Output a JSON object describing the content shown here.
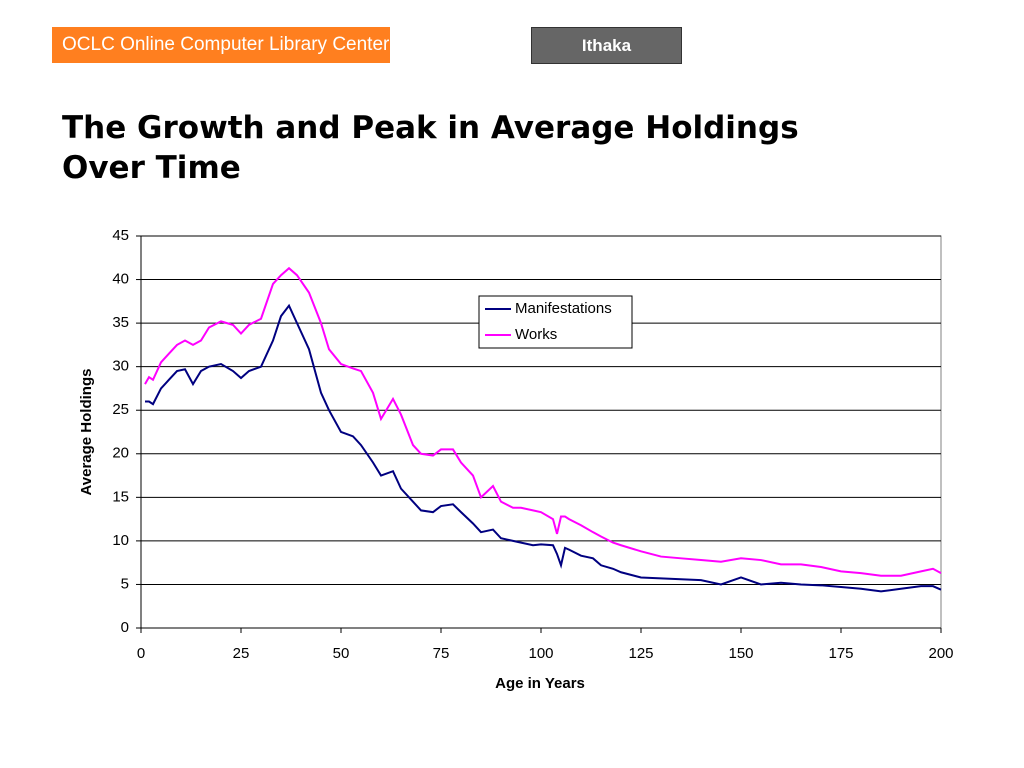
{
  "header": {
    "logo": "OCLC Online Computer Library Center",
    "badge": "Ithaka"
  },
  "chart_data": {
    "type": "line",
    "title": "The Growth and Peak in Average Holdings Over Time",
    "x_label": "Age in Years",
    "y_label": "Average Holdings",
    "x": [
      1,
      2,
      3,
      5,
      7,
      9,
      11,
      13,
      15,
      17,
      20,
      23,
      25,
      27,
      30,
      33,
      35,
      37,
      39,
      42,
      45,
      47,
      50,
      53,
      55,
      58,
      60,
      63,
      65,
      68,
      70,
      73,
      75,
      78,
      80,
      83,
      85,
      88,
      90,
      93,
      95,
      98,
      100,
      103,
      104,
      105,
      106,
      107,
      110,
      113,
      115,
      118,
      120,
      125,
      130,
      135,
      140,
      145,
      150,
      155,
      160,
      165,
      170,
      175,
      180,
      185,
      190,
      195,
      198,
      200
    ],
    "series": [
      {
        "name": "Manifestations",
        "color": "#000080",
        "values": [
          26,
          26,
          25.7,
          27.5,
          28.5,
          29.5,
          29.7,
          28,
          29.5,
          30,
          30.3,
          29.5,
          28.7,
          29.5,
          30,
          33,
          35.8,
          37,
          35,
          32,
          27,
          25,
          22.5,
          22,
          21,
          19,
          17.5,
          18,
          16,
          14.5,
          13.5,
          13.3,
          14,
          14.2,
          13.3,
          12,
          11,
          11.3,
          10.3,
          10,
          9.8,
          9.5,
          9.6,
          9.5,
          8.5,
          7.2,
          9.2,
          9,
          8.3,
          8,
          7.2,
          6.8,
          6.4,
          5.8,
          5.7,
          5.6,
          5.5,
          5,
          5.8,
          5,
          5.2,
          5,
          4.9,
          4.7,
          4.5,
          4.2,
          4.5,
          4.8,
          4.8,
          4.4
        ]
      },
      {
        "name": "Works",
        "color": "#ff00ff",
        "values": [
          28,
          28.8,
          28.5,
          30.5,
          31.5,
          32.5,
          33,
          32.5,
          33,
          34.5,
          35.2,
          34.8,
          33.8,
          34.8,
          35.5,
          39.5,
          40.5,
          41.3,
          40.5,
          38.5,
          35,
          32,
          30.3,
          29.8,
          29.5,
          27,
          24,
          26.3,
          24.5,
          21,
          20,
          19.8,
          20.5,
          20.5,
          19,
          17.5,
          15,
          16.3,
          14.5,
          13.8,
          13.8,
          13.5,
          13.3,
          12.5,
          10.8,
          12.8,
          12.8,
          12.5,
          11.8,
          11,
          10.5,
          9.8,
          9.5,
          8.8,
          8.2,
          8,
          7.8,
          7.6,
          8,
          7.8,
          7.3,
          7.3,
          7,
          6.5,
          6.3,
          6,
          6,
          6.5,
          6.8,
          6.3
        ]
      }
    ],
    "xlim": [
      0,
      200
    ],
    "xticks": [
      0,
      25,
      50,
      75,
      100,
      125,
      150,
      175,
      200
    ],
    "ylim": [
      0,
      45
    ],
    "yticks": [
      0,
      5,
      10,
      15,
      20,
      25,
      30,
      35,
      40,
      45
    ],
    "grid": true,
    "legend": "upper right"
  }
}
